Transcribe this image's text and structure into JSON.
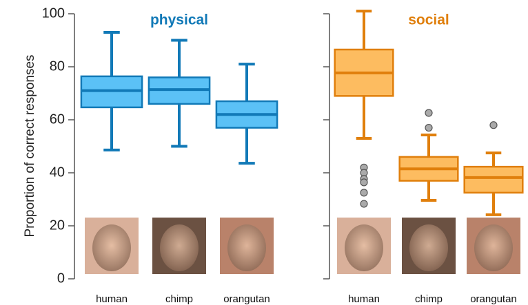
{
  "chart_data": [
    {
      "type": "box",
      "title": "physical",
      "ylabel": "Proportion of correct responses",
      "categories": [
        "human",
        "chimp",
        "orangutan"
      ],
      "color": "#5bc1f6",
      "edge_color": "#1179b7",
      "ylim": [
        0,
        100
      ],
      "yticks": [
        0,
        20,
        40,
        60,
        80,
        100
      ],
      "show_ytick_labels": true,
      "boxes": [
        {
          "min": 48.6,
          "q1": 64.7,
          "median": 71,
          "q3": 76.4,
          "max": 93,
          "outliers": []
        },
        {
          "min": 50,
          "q1": 66,
          "median": 71.4,
          "q3": 76,
          "max": 90,
          "outliers": []
        },
        {
          "min": 43.6,
          "q1": 57,
          "median": 62,
          "q3": 67,
          "max": 81,
          "outliers": []
        }
      ]
    },
    {
      "type": "box",
      "title": "social",
      "categories": [
        "human",
        "chimp",
        "orangutan"
      ],
      "color": "#fdbc60",
      "edge_color": "#e07f0c",
      "ylim": [
        0,
        100
      ],
      "yticks": [
        0,
        20,
        40,
        60,
        80,
        100
      ],
      "show_ytick_labels": false,
      "boxes": [
        {
          "min": 53,
          "q1": 69,
          "median": 77.7,
          "q3": 86.5,
          "max": 101,
          "outliers": [
            42,
            40,
            37.7,
            36.4,
            32.5,
            28.3
          ]
        },
        {
          "min": 29.6,
          "q1": 37,
          "median": 41.5,
          "q3": 46,
          "max": 54.3,
          "outliers": [
            62.6,
            57
          ]
        },
        {
          "min": 24.2,
          "q1": 32.5,
          "median": 38.2,
          "q3": 42.3,
          "max": 47.5,
          "outliers": [
            58
          ]
        }
      ]
    }
  ]
}
